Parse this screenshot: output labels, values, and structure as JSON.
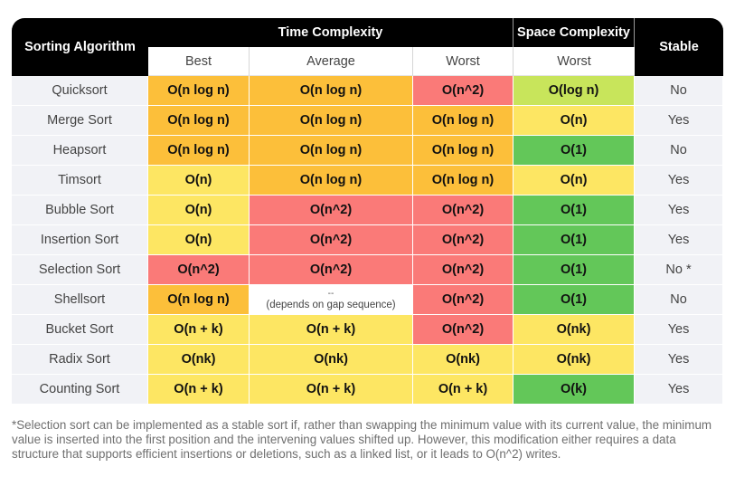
{
  "header": {
    "algorithm": "Sorting Algorithm",
    "time_complexity": "Time Complexity",
    "space_complexity": "Space Complexity",
    "stable": "Stable",
    "best": "Best",
    "average": "Average",
    "worst": "Worst",
    "space_worst": "Worst"
  },
  "colors": {
    "orange": "#fcbf3a",
    "yellow": "#fde663",
    "red": "#fa7a78",
    "green": "#63c759",
    "lime": "#c8e55b",
    "pink": "#fde2e1",
    "header_bg": "#000000",
    "name_bg": "#f1f2f6"
  },
  "rows": [
    {
      "name": "Quicksort",
      "best": "O(n log n)",
      "average": "O(n log n)",
      "worst": "O(n^2)",
      "space": "O(log n)",
      "stable": "No"
    },
    {
      "name": "Merge Sort",
      "best": "O(n log n)",
      "average": "O(n log n)",
      "worst": "O(n log n)",
      "space": "O(n)",
      "stable": "Yes"
    },
    {
      "name": "Heapsort",
      "best": "O(n log n)",
      "average": "O(n log n)",
      "worst": "O(n log n)",
      "space": "O(1)",
      "stable": "No"
    },
    {
      "name": "Timsort",
      "best": "O(n)",
      "average": "O(n log n)",
      "worst": "O(n log n)",
      "space": "O(n)",
      "stable": "Yes"
    },
    {
      "name": "Bubble Sort",
      "best": "O(n)",
      "average": "O(n^2)",
      "worst": "O(n^2)",
      "space": "O(1)",
      "stable": "Yes"
    },
    {
      "name": "Insertion Sort",
      "best": "O(n)",
      "average": "O(n^2)",
      "worst": "O(n^2)",
      "space": "O(1)",
      "stable": "Yes"
    },
    {
      "name": "Selection Sort",
      "best": "O(n^2)",
      "average": "O(n^2)",
      "worst": "O(n^2)",
      "space": "O(1)",
      "stable": "No *"
    },
    {
      "name": "Shellsort",
      "best": "O(n log n)",
      "average_top": "--",
      "average_note": "(depends on gap sequence)",
      "worst": "O(n^2)",
      "space": "O(1)",
      "stable": "No"
    },
    {
      "name": "Bucket Sort",
      "best": "O(n + k)",
      "average": "O(n + k)",
      "worst": "O(n^2)",
      "space": "O(nk)",
      "stable": "Yes"
    },
    {
      "name": "Radix Sort",
      "best": "O(nk)",
      "average": "O(nk)",
      "worst": "O(nk)",
      "space": "O(nk)",
      "stable": "Yes"
    },
    {
      "name": "Counting Sort",
      "best": "O(n + k)",
      "average": "O(n + k)",
      "worst": "O(n + k)",
      "space": "O(k)",
      "stable": "Yes"
    }
  ],
  "footnote": "*Selection sort can be implemented as a stable sort if, rather than swapping the minimum value with its current value, the minimum value is inserted into the first position and the intervening values shifted up. However, this modification either requires a data structure that supports efficient insertions or deletions, such as a linked list, or it leads to O(n^2) writes."
}
